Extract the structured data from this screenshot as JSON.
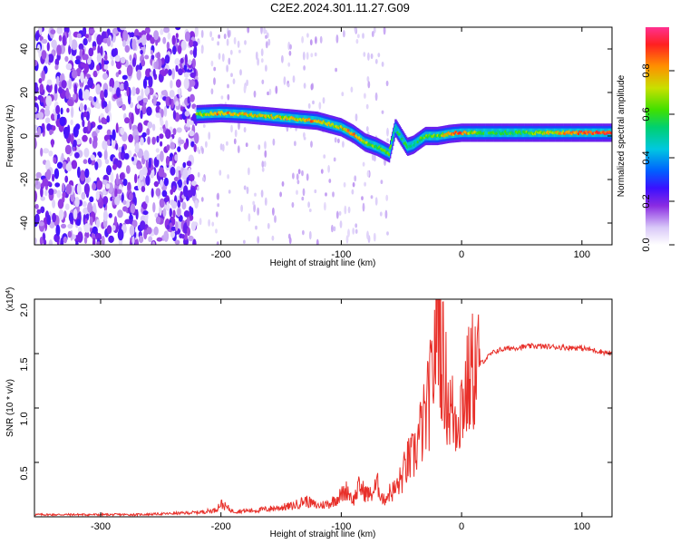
{
  "figure_title": "C2E2.2024.301.11.27.G09",
  "chart_data": [
    {
      "type": "heatmap",
      "title": "",
      "xlabel": "Height of straight line (km)",
      "ylabel": "Frequency (Hz)",
      "xlim": [
        -355,
        125
      ],
      "ylim": [
        -50,
        50
      ],
      "xticks": [
        -300,
        -200,
        -100,
        0,
        100
      ],
      "yticks": [
        -40,
        -20,
        0,
        20,
        40
      ],
      "colorbar": {
        "label": "Normalized spectral amplitude",
        "range": [
          0.0,
          1.0
        ],
        "ticks": [
          0.0,
          0.2,
          0.4,
          0.6,
          0.8
        ],
        "tick_labels": [
          "0.0",
          "0.2",
          "0.4",
          "0.6",
          "0.8"
        ],
        "colormap": [
          "#ffffff",
          "#d8c8f8",
          "#8a2be2",
          "#3b10ff",
          "#0060ff",
          "#00c8e0",
          "#00d070",
          "#40e000",
          "#c8e000",
          "#ff9000",
          "#ff2020",
          "#ff3090"
        ]
      },
      "noise_region": {
        "x": [
          -355,
          -220
        ],
        "amplitude": "0.2-0.5 scattered"
      },
      "signal_track": [
        {
          "x": -220,
          "freq": 10,
          "amp": 0.7
        },
        {
          "x": -200,
          "freq": 10.5,
          "amp": 0.8
        },
        {
          "x": -180,
          "freq": 10,
          "amp": 0.75
        },
        {
          "x": -160,
          "freq": 9,
          "amp": 0.7
        },
        {
          "x": -140,
          "freq": 8,
          "amp": 0.75
        },
        {
          "x": -120,
          "freq": 7,
          "amp": 0.8
        },
        {
          "x": -100,
          "freq": 4,
          "amp": 0.7
        },
        {
          "x": -90,
          "freq": 1,
          "amp": 0.85
        },
        {
          "x": -80,
          "freq": -3,
          "amp": 0.7
        },
        {
          "x": -70,
          "freq": -5,
          "amp": 0.6
        },
        {
          "x": -60,
          "freq": -8,
          "amp": 0.6
        },
        {
          "x": -55,
          "freq": 4,
          "amp": 0.5
        },
        {
          "x": -45,
          "freq": -5,
          "amp": 0.55
        },
        {
          "x": -40,
          "freq": -4,
          "amp": 0.55
        },
        {
          "x": -30,
          "freq": 0,
          "amp": 0.6
        },
        {
          "x": -20,
          "freq": 0,
          "amp": 0.65
        },
        {
          "x": -10,
          "freq": 1,
          "amp": 0.75
        },
        {
          "x": 0,
          "freq": 1.5,
          "amp": 0.85
        },
        {
          "x": 20,
          "freq": 1.5,
          "amp": 0.55
        },
        {
          "x": 50,
          "freq": 1.5,
          "amp": 0.6
        },
        {
          "x": 80,
          "freq": 1.5,
          "amp": 0.75
        },
        {
          "x": 100,
          "freq": 1.5,
          "amp": 0.85
        },
        {
          "x": 125,
          "freq": 1.5,
          "amp": 0.9
        }
      ]
    },
    {
      "type": "line",
      "title": "",
      "xlabel": "Height of straight line (km)",
      "ylabel": "SNR (10 * v/v)",
      "y_multiplier_label": "(x10",
      "y_multiplier_exp": "4",
      "xlim": [
        -355,
        125
      ],
      "ylim": [
        0,
        2.0
      ],
      "xticks": [
        -300,
        -200,
        -100,
        0,
        100
      ],
      "yticks": [
        0.5,
        1.0,
        1.5,
        2.0
      ],
      "ytick_labels": [
        "0.5",
        "1.0",
        "1.5",
        "2.0"
      ],
      "line_color": "#e8302a",
      "series": [
        {
          "x": [
            -355,
            -330,
            -300,
            -270,
            -240,
            -220,
            -205,
            -200,
            -190,
            -170,
            -155,
            -140,
            -130,
            -120,
            -110,
            -100,
            -95,
            -90,
            -85,
            -80,
            -75,
            -70,
            -65,
            -60,
            -55,
            -50,
            -45,
            -40,
            -35,
            -30,
            -25,
            -22,
            -20,
            -15,
            -10,
            -5,
            0,
            5,
            10,
            15,
            20,
            25,
            30,
            40,
            60,
            80,
            100,
            125
          ],
          "y": [
            0.02,
            0.02,
            0.02,
            0.02,
            0.03,
            0.04,
            0.06,
            0.12,
            0.05,
            0.06,
            0.08,
            0.1,
            0.15,
            0.1,
            0.12,
            0.2,
            0.25,
            0.15,
            0.28,
            0.22,
            0.2,
            0.3,
            0.15,
            0.22,
            0.25,
            0.35,
            0.5,
            0.55,
            0.75,
            0.9,
            1.2,
            1.6,
            2.0,
            1.35,
            1.0,
            0.9,
            1.05,
            1.2,
            1.35,
            1.4,
            1.45,
            1.5,
            1.53,
            1.55,
            1.57,
            1.56,
            1.55,
            1.5
          ]
        }
      ]
    }
  ]
}
